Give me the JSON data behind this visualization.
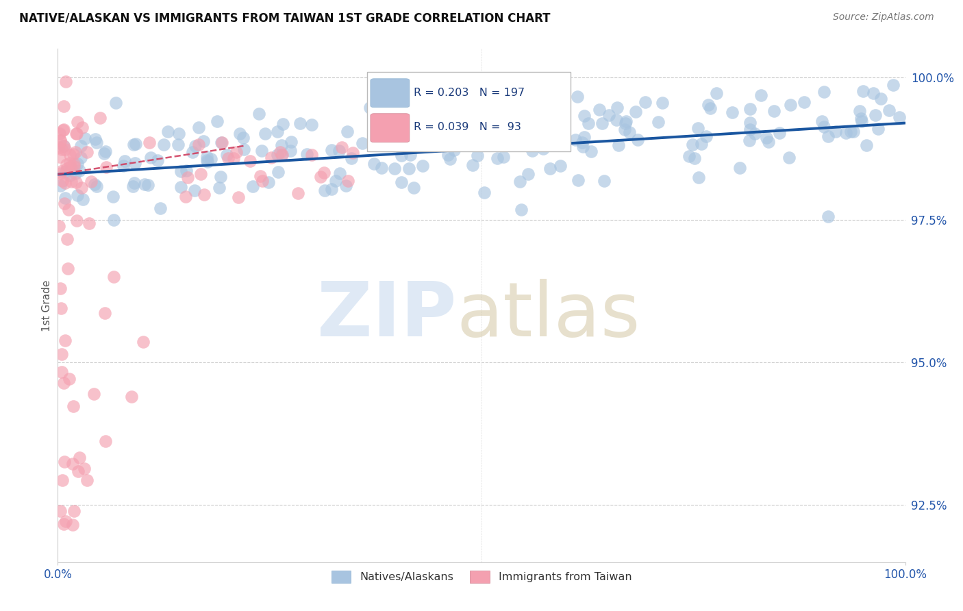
{
  "title": "NATIVE/ALASKAN VS IMMIGRANTS FROM TAIWAN 1ST GRADE CORRELATION CHART",
  "source_text": "Source: ZipAtlas.com",
  "ylabel": "1st Grade",
  "x_min": 0.0,
  "x_max": 1.0,
  "y_min": 0.915,
  "y_max": 1.005,
  "y_ticks": [
    0.925,
    0.95,
    0.975,
    1.0
  ],
  "y_tick_labels": [
    "92.5%",
    "95.0%",
    "97.5%",
    "100.0%"
  ],
  "x_tick_labels": [
    "0.0%",
    "100.0%"
  ],
  "legend_r_blue": "R = 0.203",
  "legend_n_blue": "N = 197",
  "legend_r_pink": "R = 0.039",
  "legend_n_pink": "N =  93",
  "blue_color": "#a8c4e0",
  "pink_color": "#f4a0b0",
  "trendline_blue": "#1a56a0",
  "trendline_pink": "#d04060",
  "title_fontsize": 13,
  "tick_label_color": "#2255aa",
  "blue_trend_x": [
    0.0,
    1.0
  ],
  "blue_trend_y": [
    0.983,
    0.992
  ],
  "pink_trend_x": [
    0.0,
    0.22
  ],
  "pink_trend_y": [
    0.983,
    0.988
  ]
}
